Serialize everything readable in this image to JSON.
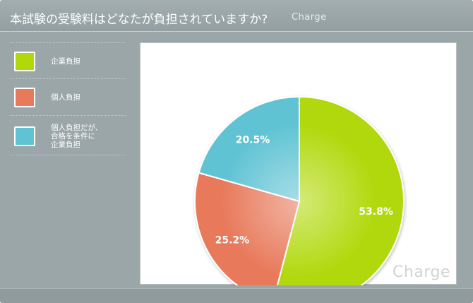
{
  "header": {
    "title": "本試験の受験料はどなたが負担されていますか?",
    "brand": "Charge"
  },
  "watermark": "Charge",
  "colors": {
    "green": "#b0d80a",
    "orange": "#e8795a",
    "cyan": "#5fc3d3"
  },
  "chart_data": {
    "type": "pie",
    "title": "本試験の受験料はどなたが負担されていますか?",
    "legend_position": "left",
    "slices": [
      {
        "label": "企業負担",
        "value": 53.8,
        "display": "53.8%",
        "color": "#b0d80a"
      },
      {
        "label": "個人負担",
        "value": 25.2,
        "display": "25.2%",
        "color": "#e8795a"
      },
      {
        "label": "個人負担だが、\n合格を条件に\n企業負担",
        "value": 20.5,
        "display": "20.5%",
        "color": "#5fc3d3"
      }
    ]
  }
}
